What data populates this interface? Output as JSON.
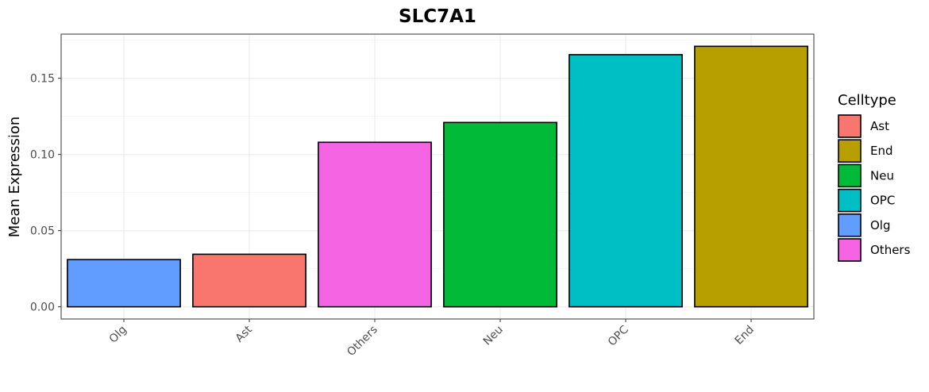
{
  "chart_data": {
    "type": "bar",
    "title": "SLC7A1",
    "xlabel": "",
    "ylabel": "Mean Expression",
    "categories": [
      "Olg",
      "Ast",
      "Others",
      "Neu",
      "OPC",
      "End"
    ],
    "values": [
      0.031,
      0.0345,
      0.108,
      0.121,
      0.1655,
      0.171
    ],
    "ylim": [
      -0.008,
      0.179
    ],
    "yticks": [
      0.0,
      0.05,
      0.1,
      0.15
    ],
    "ytick_labels": [
      "0.00",
      "0.05",
      "0.10",
      "0.15"
    ],
    "grid": true,
    "legend": {
      "title": "Celltype",
      "position": "right",
      "entries": [
        {
          "label": "Ast",
          "color": "#F8766D"
        },
        {
          "label": "End",
          "color": "#B79F00"
        },
        {
          "label": "Neu",
          "color": "#00BA38"
        },
        {
          "label": "OPC",
          "color": "#00BFC4"
        },
        {
          "label": "Olg",
          "color": "#619CFF"
        },
        {
          "label": "Others",
          "color": "#F564E3"
        }
      ]
    },
    "colors": {
      "Ast": "#F8766D",
      "End": "#B79F00",
      "Neu": "#00BA38",
      "OPC": "#00BFC4",
      "Olg": "#619CFF",
      "Others": "#F564E3"
    }
  }
}
